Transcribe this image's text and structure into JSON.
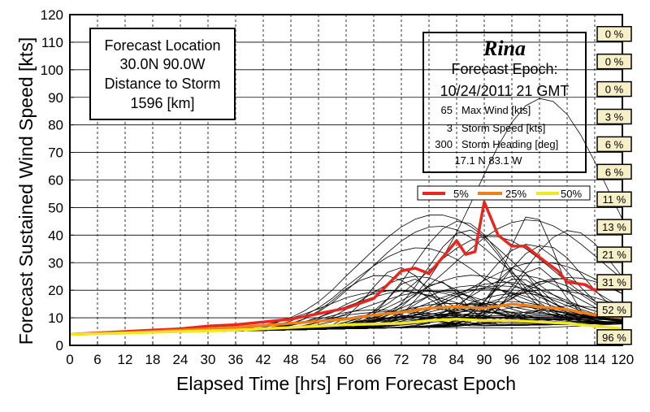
{
  "chart_data": {
    "type": "line",
    "xlabel": "Elapsed Time [hrs] From Forecast Epoch",
    "ylabel": "Forecast Sustained Wind Speed [kts]",
    "xlim": [
      0,
      120
    ],
    "ylim": [
      0,
      120
    ],
    "xticks": [
      0,
      6,
      12,
      18,
      24,
      30,
      36,
      42,
      48,
      54,
      60,
      66,
      72,
      78,
      84,
      90,
      96,
      102,
      108,
      114,
      120
    ],
    "yticks": [
      0,
      10,
      20,
      30,
      40,
      50,
      60,
      70,
      80,
      90,
      100,
      110,
      120
    ],
    "grid": true,
    "location_box": {
      "line1": "Forecast Location",
      "line2": "30.0N  90.0W",
      "line3": "Distance to Storm",
      "line4": "1596  [km]"
    },
    "storm_box": {
      "name": "Rina",
      "epoch_label": "Forecast Epoch:",
      "epoch": "10/24/2011  21 GMT",
      "max_wind_value": "65",
      "max_wind_label": "Max Wind [kts]",
      "speed_value": "3",
      "speed_label": "Storm Speed [kts]",
      "heading_value": "300",
      "heading_label": "Storm Heading [deg]",
      "position": "17.1 N  83.1 W"
    },
    "legend_position": "upper-right",
    "colors": {
      "p5": "#e8261e",
      "p25": "#f07f17",
      "p50": "#f2e61e",
      "ensemble": "#000000"
    },
    "series": [
      {
        "name": "5%",
        "x": [
          0,
          6,
          12,
          18,
          24,
          30,
          36,
          42,
          48,
          54,
          60,
          66,
          69,
          72,
          75,
          78,
          81,
          84,
          86,
          88,
          90,
          93,
          96,
          99,
          102,
          106,
          108,
          112,
          114,
          118,
          120
        ],
        "values": [
          4,
          4.5,
          5,
          5.5,
          6,
          7,
          7.5,
          8.5,
          9.5,
          11.5,
          13.5,
          17,
          22,
          27,
          28,
          26,
          32,
          38,
          33,
          34,
          52,
          40,
          36,
          36,
          32,
          27,
          23,
          22,
          20,
          21,
          21
        ]
      },
      {
        "name": "25%",
        "x": [
          0,
          12,
          24,
          36,
          48,
          60,
          66,
          72,
          78,
          84,
          90,
          96,
          102,
          108,
          114,
          120
        ],
        "values": [
          4,
          4.5,
          5.5,
          6.5,
          8,
          9.5,
          11,
          12,
          13.5,
          14,
          13.5,
          15,
          14,
          13,
          11,
          10
        ]
      },
      {
        "name": "50%",
        "x": [
          0,
          12,
          24,
          36,
          48,
          60,
          72,
          78,
          84,
          90,
          96,
          102,
          108,
          114,
          120
        ],
        "values": [
          4,
          4.5,
          5,
          5.5,
          6.5,
          7.5,
          8,
          9,
          9.5,
          9,
          9,
          8.5,
          8,
          7,
          6
        ]
      }
    ],
    "ensemble_member_count": 60,
    "exceedance_probabilities": [
      {
        "threshold": 0,
        "label": "96 %"
      },
      {
        "threshold": 10,
        "label": "52 %"
      },
      {
        "threshold": 20,
        "label": "31 %"
      },
      {
        "threshold": 30,
        "label": "21 %"
      },
      {
        "threshold": 40,
        "label": "13 %"
      },
      {
        "threshold": 50,
        "label": "11 %"
      },
      {
        "threshold": 60,
        "label": "6 %"
      },
      {
        "threshold": 70,
        "label": "6 %"
      },
      {
        "threshold": 80,
        "label": "3 %"
      },
      {
        "threshold": 90,
        "label": "0 %"
      },
      {
        "threshold": 100,
        "label": "0 %"
      },
      {
        "threshold": 110,
        "label": "0 %"
      }
    ]
  }
}
